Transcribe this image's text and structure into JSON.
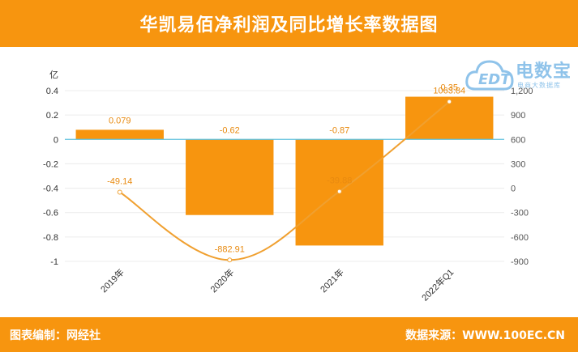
{
  "header": {
    "title": "华凯易佰净利润及同比增长率数据图"
  },
  "footer": {
    "left": "图表编制：网经社",
    "right": "数据来源：WWW.100EC.CN"
  },
  "logo": {
    "name": "电数宝",
    "sub": "电商大数据库",
    "mark": "EDT"
  },
  "colors": {
    "bar": "#f7950f",
    "line": "#f0a030",
    "zero_line": "#5bc0de",
    "header": "#f7950f"
  },
  "chart_data": {
    "type": "bar",
    "categories": [
      "2019年",
      "2020年",
      "2021年",
      "2022年Q1"
    ],
    "series": [
      {
        "values": [
          0.079,
          -0.62,
          -0.87,
          0.35
        ],
        "axis": "left",
        "kind": "bar"
      },
      {
        "values": [
          -49.14,
          -882.91,
          -39.88,
          1063.84
        ],
        "axis": "right",
        "kind": "line"
      }
    ],
    "bar_labels": [
      "0.079",
      "-0.62",
      "-0.87",
      "0.35"
    ],
    "line_labels": [
      "-49.14",
      "-882.91",
      "-39.88",
      "1063.84"
    ],
    "y_left": {
      "unit": "亿",
      "min": -1,
      "max": 0.4,
      "ticks": [
        0.4,
        0.2,
        0,
        -0.2,
        -0.4,
        -0.6,
        -0.8,
        -1
      ],
      "tick_labels": [
        "0.4",
        "0.2",
        "0",
        "-0.2",
        "-0.4",
        "-0.6",
        "-0.8",
        "-1"
      ]
    },
    "y_right": {
      "min": -900,
      "max": 1200,
      "ticks": [
        1200,
        900,
        600,
        300,
        0,
        -300,
        -600,
        -900
      ],
      "tick_labels": [
        "1,200",
        "900",
        "600",
        "300",
        "0",
        "-300",
        "-600",
        "-900"
      ]
    },
    "grid": true
  }
}
